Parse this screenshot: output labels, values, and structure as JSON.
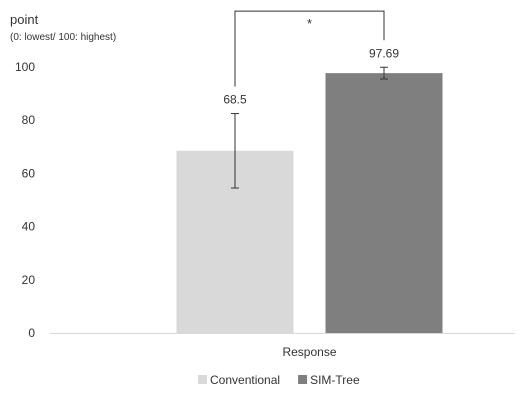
{
  "chart_data": {
    "type": "bar",
    "ylabel": "point",
    "ylabel_note": "(0: lowest/ 100: highest)",
    "xlabel": "Response",
    "ylim": [
      0,
      100
    ],
    "yticks": [
      0,
      20,
      40,
      60,
      80,
      100
    ],
    "grid": false,
    "legend_position": "bottom",
    "series": [
      {
        "name": "Conventional",
        "value": 68.5,
        "value_label": "68.5",
        "error_low": 54.5,
        "error_high": 82.5,
        "color": "#d9d9d9"
      },
      {
        "name": "SIM-Tree",
        "value": 97.69,
        "value_label": "97.69",
        "error_low": 95.5,
        "error_high": 99.9,
        "color": "#7f7f7f"
      }
    ],
    "significance": {
      "label": "*",
      "bracket_top": 121
    }
  }
}
